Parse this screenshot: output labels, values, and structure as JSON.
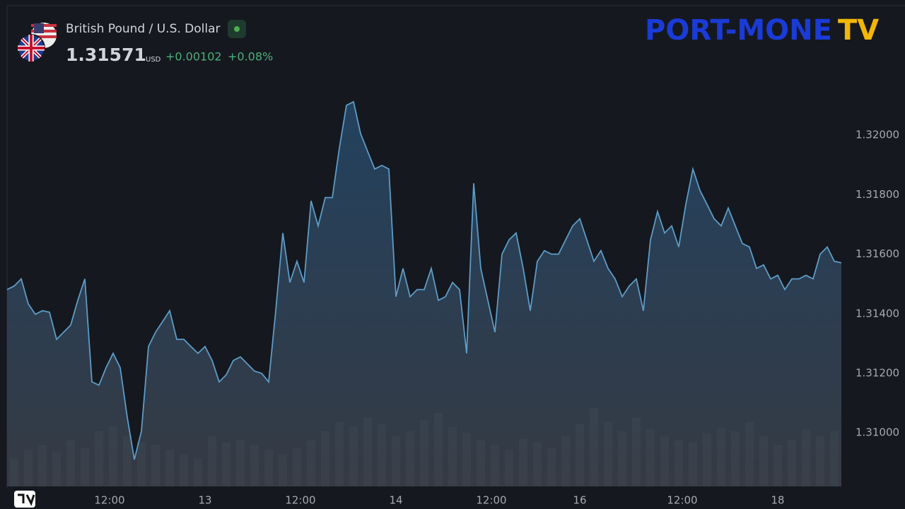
{
  "chart_data": {
    "type": "area",
    "symbol": "British Pound / U.S. Dollar",
    "last_price": "1.31571",
    "currency": "USD",
    "change": "+0.00102",
    "change_percent": "+0.08%",
    "logo": {
      "left": "PORT-MONE",
      "right": "TV"
    },
    "line_color": "#5d9cc6",
    "xlim": [
      0,
      118
    ],
    "xticks": [
      {
        "value": 14.5,
        "label": "12:00"
      },
      {
        "value": 28,
        "label": "13"
      },
      {
        "value": 41.5,
        "label": "12:00"
      },
      {
        "value": 55,
        "label": "14"
      },
      {
        "value": 68.5,
        "label": "12:00"
      },
      {
        "value": 81,
        "label": "16"
      },
      {
        "value": 95.5,
        "label": "12:00"
      },
      {
        "value": 109,
        "label": "18"
      }
    ],
    "ylim": [
      1.3082,
      1.3243
    ],
    "yticks": [
      {
        "value": 1.32,
        "label": "1.32000"
      },
      {
        "value": 1.318,
        "label": "1.31800"
      },
      {
        "value": 1.316,
        "label": "1.31600"
      },
      {
        "value": 1.314,
        "label": "1.31400"
      },
      {
        "value": 1.312,
        "label": "1.31200"
      },
      {
        "value": 1.31,
        "label": "1.31000"
      }
    ],
    "values": [
      1.31481,
      1.31493,
      1.31517,
      1.31433,
      1.31398,
      1.3141,
      1.31405,
      1.31314,
      1.31338,
      1.31362,
      1.31445,
      1.31517,
      1.31171,
      1.3116,
      1.31219,
      1.31267,
      1.31219,
      1.31052,
      1.3091,
      1.31005,
      1.3129,
      1.31338,
      1.31374,
      1.3141,
      1.31314,
      1.31314,
      1.3129,
      1.31267,
      1.3129,
      1.31243,
      1.31171,
      1.31195,
      1.31243,
      1.31255,
      1.31231,
      1.31207,
      1.312,
      1.31171,
      1.3141,
      1.31671,
      1.31505,
      1.31576,
      1.31505,
      1.31779,
      1.31695,
      1.3179,
      1.3179,
      1.31957,
      1.321,
      1.32112,
      1.32005,
      1.31945,
      1.31886,
      1.31898,
      1.31886,
      1.31457,
      1.31552,
      1.31457,
      1.31481,
      1.31481,
      1.31552,
      1.31445,
      1.31457,
      1.31505,
      1.31481,
      1.31267,
      1.31838,
      1.31552,
      1.31445,
      1.31338,
      1.316,
      1.31648,
      1.31671,
      1.31552,
      1.3141,
      1.31576,
      1.31612,
      1.316,
      1.316,
      1.31648,
      1.31695,
      1.31719,
      1.31648,
      1.31576,
      1.31612,
      1.31552,
      1.31517,
      1.31457,
      1.31493,
      1.31517,
      1.3141,
      1.31648,
      1.31743,
      1.31671,
      1.31695,
      1.31624,
      1.31767,
      1.31886,
      1.31814,
      1.31767,
      1.31719,
      1.31695,
      1.31755,
      1.31695,
      1.31636,
      1.31624,
      1.31552,
      1.31564,
      1.31517,
      1.31529,
      1.31481,
      1.31517,
      1.31517,
      1.31529,
      1.31517,
      1.316,
      1.31624,
      1.31576,
      1.31571
    ],
    "volume": {
      "color": "#3f5250",
      "ylim": [
        0,
        100
      ],
      "values": [
        30,
        40,
        45,
        38,
        50,
        42,
        60,
        65,
        55,
        48,
        45,
        40,
        35,
        30,
        55,
        48,
        50,
        45,
        40,
        35,
        42,
        50,
        60,
        70,
        65,
        75,
        68,
        55,
        60,
        72,
        80,
        65,
        58,
        50,
        45,
        40,
        52,
        48,
        42,
        55,
        68,
        85,
        70,
        60,
        75,
        62,
        55,
        50,
        48,
        58,
        64,
        60,
        70,
        55,
        45,
        50,
        62,
        55,
        60
      ]
    }
  }
}
